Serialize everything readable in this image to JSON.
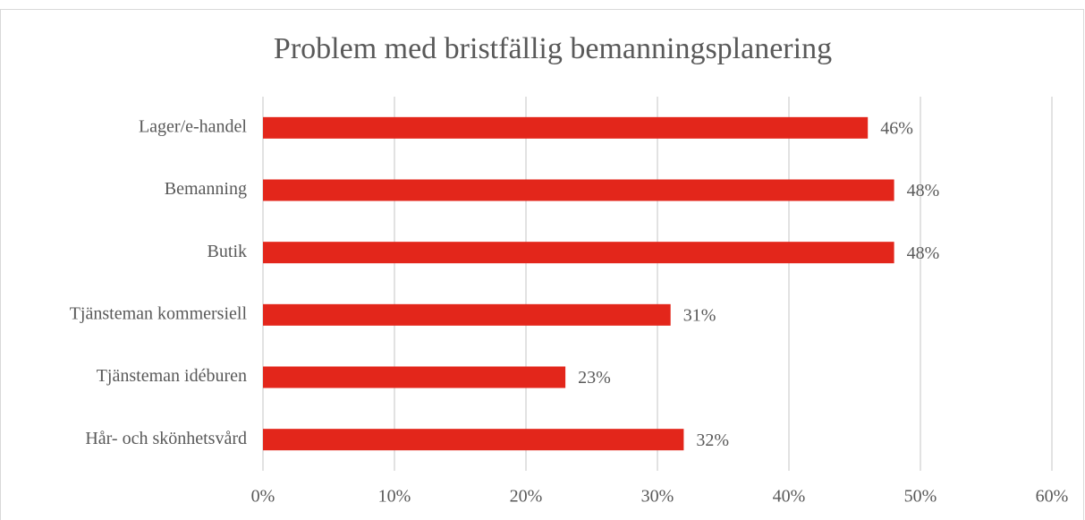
{
  "chart_data": {
    "type": "bar",
    "orientation": "horizontal",
    "title": "Problem med bristfällig bemanningsplanering",
    "categories": [
      "Lager/e-handel",
      "Bemanning",
      "Butik",
      "Tjänsteman kommersiell",
      "Tjänsteman idéburen",
      "Hår- och skönhetsvård"
    ],
    "values": [
      46,
      48,
      48,
      31,
      23,
      32
    ],
    "value_labels": [
      "46%",
      "48%",
      "48%",
      "31%",
      "23%",
      "32%"
    ],
    "color": "#e3261b",
    "xlim": [
      0,
      60
    ],
    "xticks": [
      {
        "value": 0,
        "label": "0%"
      },
      {
        "value": 10,
        "label": "10%"
      },
      {
        "value": 20,
        "label": "20%"
      },
      {
        "value": 30,
        "label": "30%"
      },
      {
        "value": 40,
        "label": "40%"
      },
      {
        "value": 50,
        "label": "50%"
      },
      {
        "value": 60,
        "label": "60%"
      }
    ],
    "grid": true
  }
}
